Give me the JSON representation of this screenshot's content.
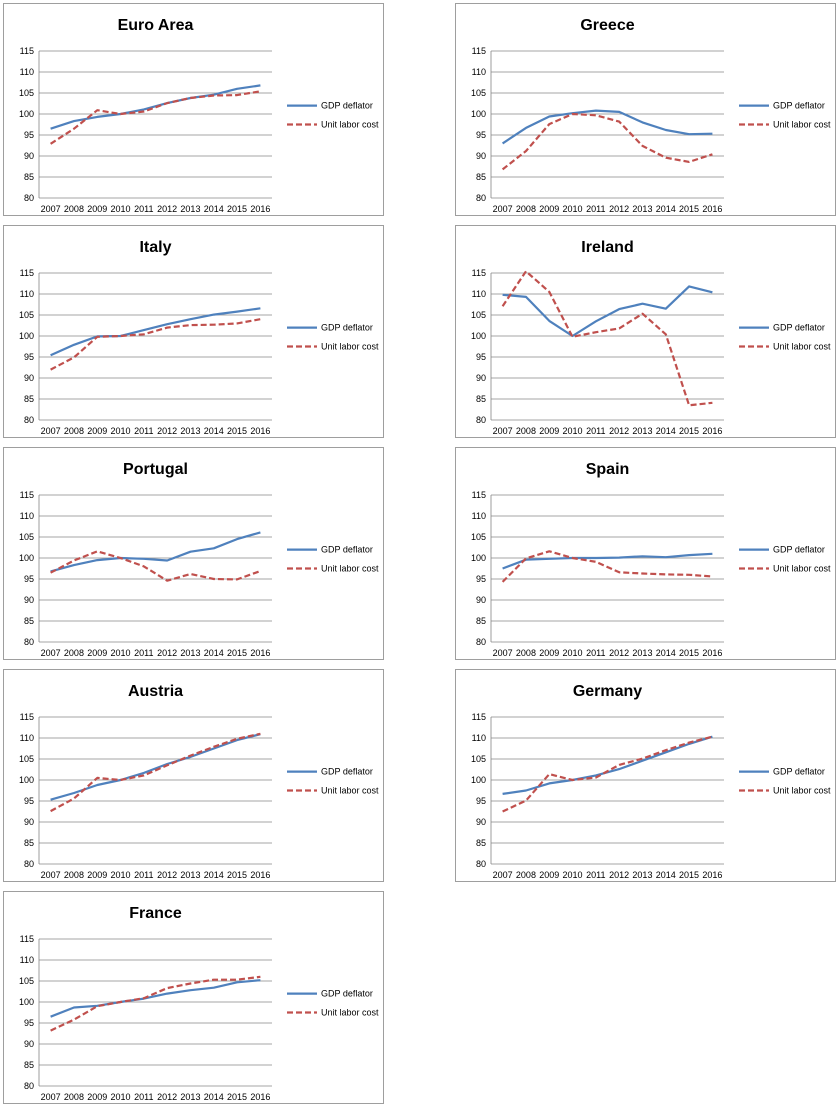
{
  "colors": {
    "gdp_deflator": "#4f81bd",
    "unit_labor_cost": "#c0504d",
    "grid": "#868686",
    "border": "#9e9e9e"
  },
  "chart_data": [
    {
      "type": "line",
      "title": "Euro Area",
      "x": [
        "2007",
        "2008",
        "2009",
        "2010",
        "2011",
        "2012",
        "2013",
        "2014",
        "2015",
        "2016"
      ],
      "ylim": [
        80,
        115
      ],
      "yticks": [
        80,
        85,
        90,
        95,
        100,
        105,
        110,
        115
      ],
      "grid": true,
      "legend_position": "right",
      "series": [
        {
          "name": "GDP deflator",
          "values": [
            96.5,
            98.3,
            99.3,
            100.0,
            101.1,
            102.6,
            103.8,
            104.6,
            106.0,
            106.8
          ]
        },
        {
          "name": "Unit labor cost",
          "values": [
            92.9,
            96.5,
            100.9,
            100.0,
            100.6,
            102.6,
            103.8,
            104.4,
            104.5,
            105.4
          ]
        }
      ]
    },
    {
      "type": "line",
      "title": "Greece",
      "x": [
        "2007",
        "2008",
        "2009",
        "2010",
        "2011",
        "2012",
        "2013",
        "2014",
        "2015",
        "2016"
      ],
      "ylim": [
        80,
        115
      ],
      "yticks": [
        80,
        85,
        90,
        95,
        100,
        105,
        110,
        115
      ],
      "grid": true,
      "legend_position": "right",
      "series": [
        {
          "name": "GDP deflator",
          "values": [
            93.0,
            96.7,
            99.4,
            100.2,
            100.8,
            100.5,
            98.0,
            96.2,
            95.2,
            95.3
          ]
        },
        {
          "name": "Unit labor cost",
          "values": [
            86.8,
            91.2,
            97.6,
            100.0,
            99.7,
            98.2,
            92.4,
            89.6,
            88.6,
            90.4
          ]
        }
      ]
    },
    {
      "type": "line",
      "title": "Italy",
      "x": [
        "2007",
        "2008",
        "2009",
        "2010",
        "2011",
        "2012",
        "2013",
        "2014",
        "2015",
        "2016"
      ],
      "ylim": [
        80,
        115
      ],
      "yticks": [
        80,
        85,
        90,
        95,
        100,
        105,
        110,
        115
      ],
      "grid": true,
      "legend_position": "right",
      "series": [
        {
          "name": "GDP deflator",
          "values": [
            95.4,
            97.9,
            99.9,
            100.0,
            101.4,
            102.8,
            104.0,
            105.1,
            105.8,
            106.6
          ]
        },
        {
          "name": "Unit labor cost",
          "values": [
            92.0,
            94.9,
            99.8,
            100.0,
            100.4,
            102.0,
            102.6,
            102.7,
            103.0,
            104.0
          ]
        }
      ]
    },
    {
      "type": "line",
      "title": "Ireland",
      "x": [
        "2007",
        "2008",
        "2009",
        "2010",
        "2011",
        "2012",
        "2013",
        "2014",
        "2015",
        "2016"
      ],
      "ylim": [
        80,
        115
      ],
      "yticks": [
        80,
        85,
        90,
        95,
        100,
        105,
        110,
        115
      ],
      "grid": true,
      "legend_position": "right",
      "series": [
        {
          "name": "GDP deflator",
          "values": [
            109.8,
            109.3,
            103.6,
            100.0,
            103.5,
            106.4,
            107.7,
            106.5,
            111.8,
            110.4
          ]
        },
        {
          "name": "Unit labor cost",
          "values": [
            107.1,
            115.4,
            110.5,
            99.8,
            100.9,
            101.8,
            105.3,
            100.4,
            83.5,
            84.1
          ]
        }
      ]
    },
    {
      "type": "line",
      "title": "Portugal",
      "x": [
        "2007",
        "2008",
        "2009",
        "2010",
        "2011",
        "2012",
        "2013",
        "2014",
        "2015",
        "2016"
      ],
      "ylim": [
        80,
        115
      ],
      "yticks": [
        80,
        85,
        90,
        95,
        100,
        105,
        110,
        115
      ],
      "grid": true,
      "legend_position": "right",
      "series": [
        {
          "name": "GDP deflator",
          "values": [
            96.8,
            98.3,
            99.5,
            100.0,
            99.8,
            99.4,
            101.5,
            102.3,
            104.5,
            106.1
          ]
        },
        {
          "name": "Unit labor cost",
          "values": [
            96.5,
            99.4,
            101.6,
            100.0,
            98.0,
            94.6,
            96.2,
            95.0,
            94.9,
            96.9
          ]
        }
      ]
    },
    {
      "type": "line",
      "title": "Spain",
      "x": [
        "2007",
        "2008",
        "2009",
        "2010",
        "2011",
        "2012",
        "2013",
        "2014",
        "2015",
        "2016"
      ],
      "ylim": [
        80,
        115
      ],
      "yticks": [
        80,
        85,
        90,
        95,
        100,
        105,
        110,
        115
      ],
      "grid": true,
      "legend_position": "right",
      "series": [
        {
          "name": "GDP deflator",
          "values": [
            97.5,
            99.6,
            99.8,
            100.0,
            100.0,
            100.1,
            100.4,
            100.2,
            100.7,
            101.0
          ]
        },
        {
          "name": "Unit labor cost",
          "values": [
            94.3,
            99.9,
            101.6,
            100.0,
            99.1,
            96.6,
            96.3,
            96.1,
            96.0,
            95.6
          ]
        }
      ]
    },
    {
      "type": "line",
      "title": "Austria",
      "x": [
        "2007",
        "2008",
        "2009",
        "2010",
        "2011",
        "2012",
        "2013",
        "2014",
        "2015",
        "2016"
      ],
      "ylim": [
        80,
        115
      ],
      "yticks": [
        80,
        85,
        90,
        95,
        100,
        105,
        110,
        115
      ],
      "grid": true,
      "legend_position": "right",
      "series": [
        {
          "name": "GDP deflator",
          "values": [
            95.3,
            96.9,
            98.8,
            100.0,
            101.7,
            103.8,
            105.5,
            107.5,
            109.5,
            110.9
          ]
        },
        {
          "name": "Unit labor cost",
          "values": [
            92.6,
            95.6,
            100.5,
            100.0,
            101.1,
            103.5,
            105.8,
            107.9,
            109.8,
            111.0
          ]
        }
      ]
    },
    {
      "type": "line",
      "title": "Germany",
      "x": [
        "2007",
        "2008",
        "2009",
        "2010",
        "2011",
        "2012",
        "2013",
        "2014",
        "2015",
        "2016"
      ],
      "ylim": [
        80,
        115
      ],
      "yticks": [
        80,
        85,
        90,
        95,
        100,
        105,
        110,
        115
      ],
      "grid": true,
      "legend_position": "right",
      "series": [
        {
          "name": "GDP deflator",
          "values": [
            96.7,
            97.5,
            99.2,
            100.0,
            101.1,
            102.6,
            104.6,
            106.6,
            108.6,
            110.3
          ]
        },
        {
          "name": "Unit labor cost",
          "values": [
            92.5,
            95.1,
            101.4,
            100.0,
            100.6,
            103.6,
            105.1,
            107.1,
            108.9,
            110.3
          ]
        }
      ]
    },
    {
      "type": "line",
      "title": "France",
      "x": [
        "2007",
        "2008",
        "2009",
        "2010",
        "2011",
        "2012",
        "2013",
        "2014",
        "2015",
        "2016"
      ],
      "ylim": [
        80,
        115
      ],
      "yticks": [
        80,
        85,
        90,
        95,
        100,
        105,
        110,
        115
      ],
      "grid": true,
      "legend_position": "right",
      "series": [
        {
          "name": "GDP deflator",
          "values": [
            96.5,
            98.7,
            99.1,
            100.0,
            100.8,
            102.0,
            102.8,
            103.4,
            104.7,
            105.2
          ]
        },
        {
          "name": "Unit labor cost",
          "values": [
            93.2,
            95.8,
            99.0,
            100.0,
            100.9,
            103.3,
            104.4,
            105.3,
            105.3,
            106.0
          ]
        }
      ]
    }
  ]
}
